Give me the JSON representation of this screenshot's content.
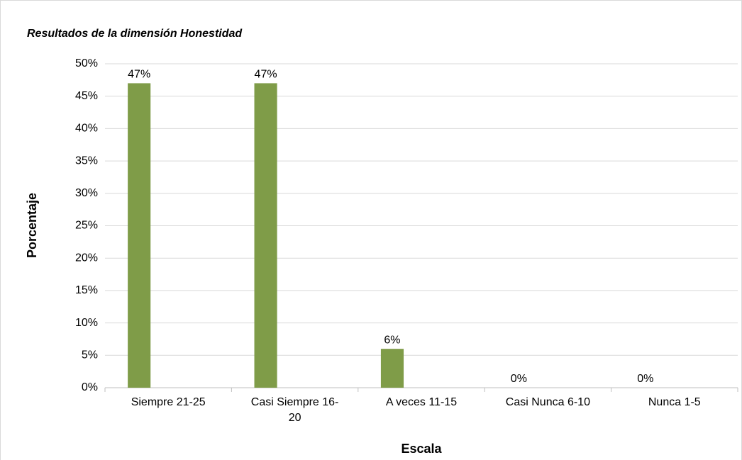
{
  "chart_data": {
    "type": "bar",
    "title": "Resultados de la dimensión Honestidad",
    "x_label": "Escala",
    "y_label": "Porcentaje",
    "categories": [
      "Siempre 21-25",
      "Casi Siempre 16-20",
      "A veces 11-15",
      "Casi Nunca 6-10",
      "Nunca 1-5"
    ],
    "values": [
      47,
      47,
      6,
      0,
      0
    ],
    "value_labels": [
      "47%",
      "47%",
      "6%",
      "0%",
      "0%"
    ],
    "color": "#7f9c48",
    "ylim": [
      0,
      50
    ],
    "yticks": [
      {
        "value": 0,
        "label": "0%"
      },
      {
        "value": 5,
        "label": "5%"
      },
      {
        "value": 10,
        "label": "10%"
      },
      {
        "value": 15,
        "label": "15%"
      },
      {
        "value": 20,
        "label": "20%"
      },
      {
        "value": 25,
        "label": "25%"
      },
      {
        "value": 30,
        "label": "30%"
      },
      {
        "value": 35,
        "label": "35%"
      },
      {
        "value": 40,
        "label": "40%"
      },
      {
        "value": 45,
        "label": "45%"
      },
      {
        "value": 50,
        "label": "50%"
      }
    ],
    "grid": true
  }
}
